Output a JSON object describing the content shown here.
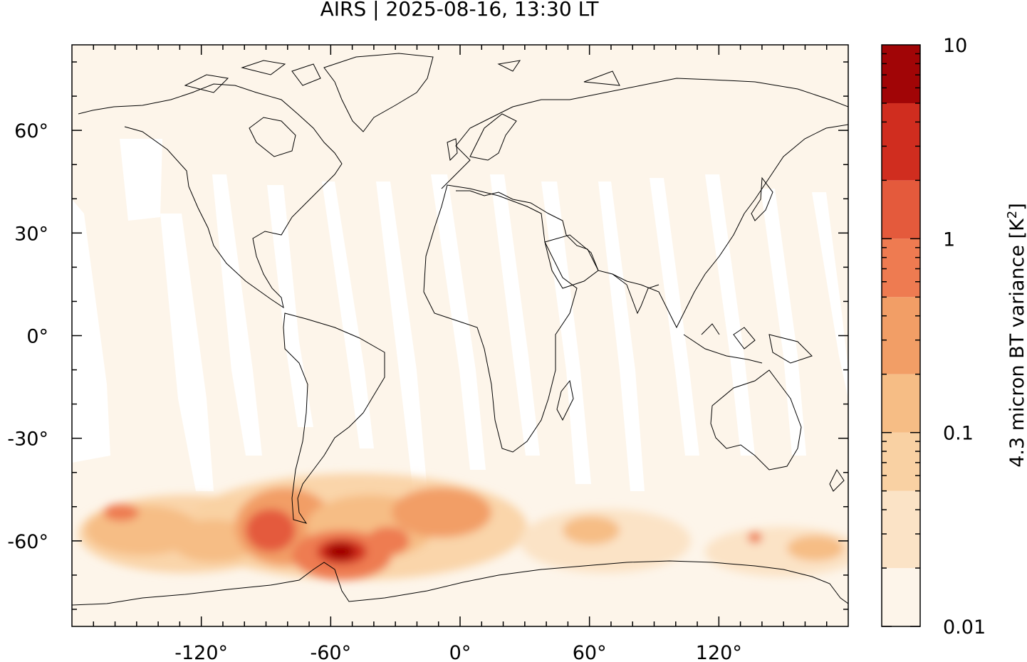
{
  "title": "AIRS | 2025-08-16, 13:30 LT",
  "map": {
    "projection": "equirectangular",
    "lon_range": [
      -180,
      180
    ],
    "lat_range": [
      -85,
      85
    ],
    "x_ticks": [
      {
        "value": -120,
        "label": "-120°"
      },
      {
        "value": -60,
        "label": "-60°"
      },
      {
        "value": 0,
        "label": "0°"
      },
      {
        "value": 60,
        "label": "60°"
      },
      {
        "value": 120,
        "label": "120°"
      }
    ],
    "y_ticks": [
      {
        "value": 60,
        "label": "60°"
      },
      {
        "value": 30,
        "label": "30°"
      },
      {
        "value": 0,
        "label": "0°"
      },
      {
        "value": -30,
        "label": "-30°"
      },
      {
        "value": -60,
        "label": "-60°"
      }
    ],
    "background_color": "#fdf5ea",
    "coastline_color": "#000000"
  },
  "colorbar": {
    "label": "4.3 micron BT variance [K²]",
    "scale": "log",
    "range": [
      0.01,
      10
    ],
    "tick_labels": [
      "10",
      "1",
      "0.1",
      "0.01"
    ],
    "levels": [
      0.01,
      0.02,
      0.05,
      0.1,
      0.2,
      0.5,
      1,
      2,
      5,
      10
    ],
    "colors": [
      "#fdf5ea",
      "#fbe3c6",
      "#f9d1a3",
      "#f6bd85",
      "#f29e66",
      "#ee7b51",
      "#e45a3c",
      "#d02d1f",
      "#a10506"
    ]
  }
}
